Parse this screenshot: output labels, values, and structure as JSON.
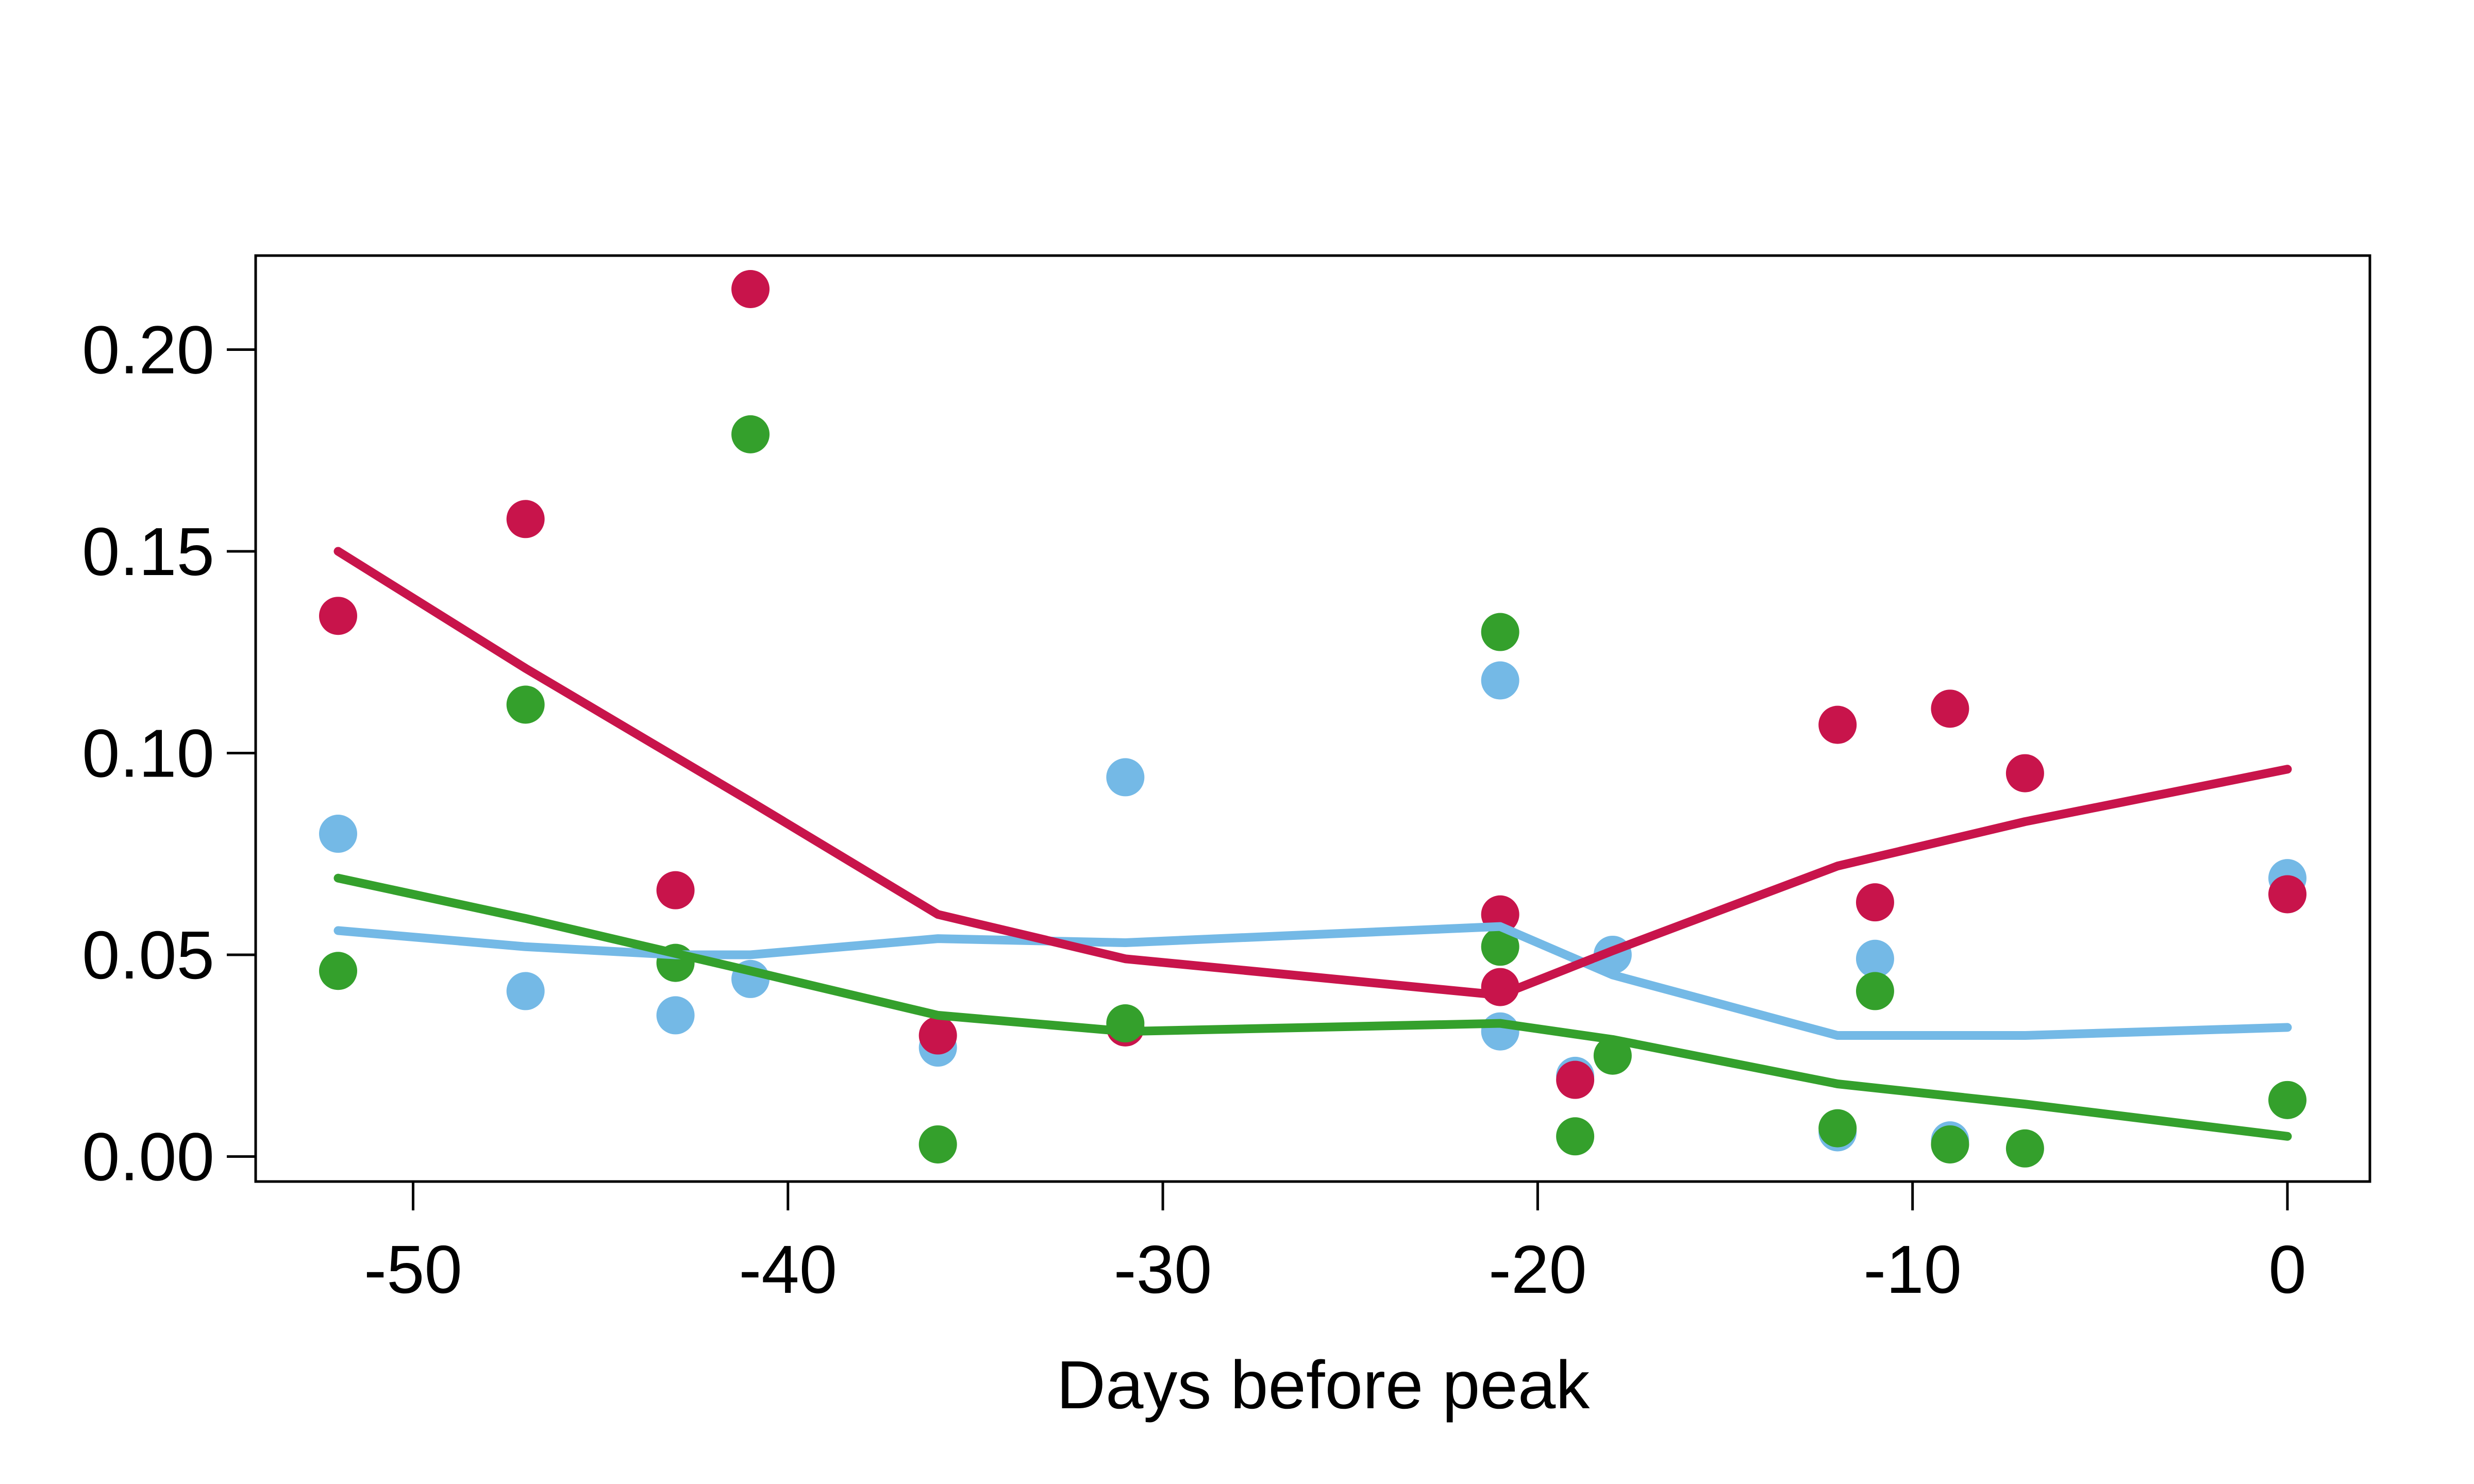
{
  "chart_data": {
    "type": "scatter",
    "title": "",
    "xlabel": "Days before peak",
    "ylabel": "",
    "xlim": [
      -54.2,
      2.2
    ],
    "ylim": [
      -0.0062,
      0.2233
    ],
    "x_ticks": [
      -50,
      -40,
      -30,
      -20,
      -10,
      0
    ],
    "x_tick_labels": [
      "-50",
      "-40",
      "-30",
      "-20",
      "-10",
      "0"
    ],
    "y_ticks": [
      0.0,
      0.05,
      0.1,
      0.15,
      0.2
    ],
    "y_tick_labels": [
      "0.00",
      "0.05",
      "0.10",
      "0.15",
      "0.20"
    ],
    "grid": false,
    "legend": "none",
    "series": [
      {
        "color": "#74b9e6",
        "points": {
          "x": [
            -52,
            -47,
            -43,
            -41,
            -36,
            -31,
            -21,
            -21,
            -19,
            -18,
            -12,
            -11,
            -9,
            0
          ],
          "y": [
            0.08,
            0.041,
            0.035,
            0.044,
            0.027,
            0.094,
            0.118,
            0.031,
            0.02,
            0.05,
            0.006,
            0.049,
            0.004,
            0.069
          ]
        },
        "line": {
          "x": [
            -52,
            -47,
            -43,
            -41,
            -36,
            -31,
            -21,
            -18,
            -12,
            -7,
            0
          ],
          "y": [
            0.056,
            0.052,
            0.05,
            0.05,
            0.054,
            0.053,
            0.057,
            0.045,
            0.03,
            0.03,
            0.032
          ]
        }
      },
      {
        "color": "#c8144b",
        "points": {
          "x": [
            -52,
            -47,
            -43,
            -41,
            -36,
            -31,
            -21,
            -21,
            -19,
            -12,
            -11,
            -9,
            -7,
            0
          ],
          "y": [
            0.134,
            0.158,
            0.066,
            0.215,
            0.03,
            0.032,
            0.06,
            0.042,
            0.019,
            0.107,
            0.063,
            0.111,
            0.095,
            0.065
          ]
        },
        "line": {
          "x": [
            -52,
            -47,
            -41,
            -36,
            -31,
            -21,
            -18,
            -12,
            -7,
            0
          ],
          "y": [
            0.15,
            0.121,
            0.088,
            0.06,
            0.049,
            0.04,
            0.051,
            0.072,
            0.083,
            0.096
          ]
        }
      },
      {
        "color": "#34a02c",
        "points": {
          "x": [
            -52,
            -47,
            -43,
            -41,
            -36,
            -31,
            -21,
            -21,
            -19,
            -18,
            -12,
            -11,
            -9,
            -7,
            0
          ],
          "y": [
            0.046,
            0.112,
            0.048,
            0.179,
            0.003,
            0.033,
            0.13,
            0.052,
            0.005,
            0.025,
            0.007,
            0.041,
            0.003,
            0.002,
            0.014
          ]
        },
        "line": {
          "x": [
            -52,
            -47,
            -41,
            -36,
            -31,
            -21,
            -18,
            -12,
            -7,
            0
          ],
          "y": [
            0.069,
            0.059,
            0.046,
            0.035,
            0.031,
            0.033,
            0.029,
            0.018,
            0.013,
            0.005
          ]
        }
      }
    ]
  }
}
